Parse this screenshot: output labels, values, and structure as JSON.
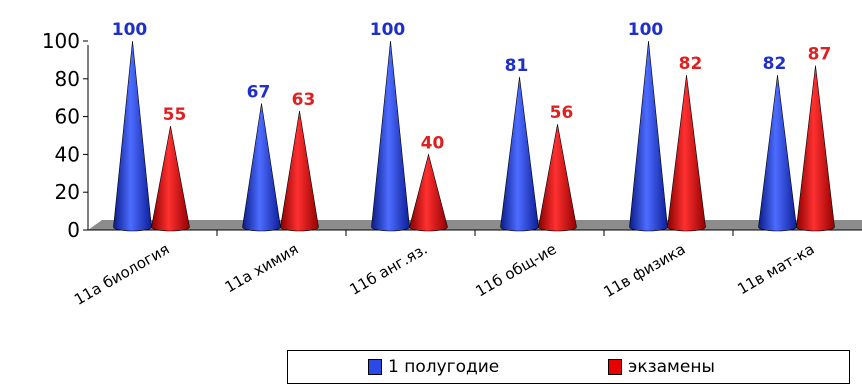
{
  "chart_data": {
    "type": "bar",
    "shape": "cone",
    "categories": [
      "11а биология",
      "11а химия",
      "11б анг.яз.",
      "11б общ-ие",
      "11в физика",
      "11в мат-ка"
    ],
    "series": [
      {
        "name": "1 полугодие",
        "values": [
          100,
          67,
          100,
          81,
          100,
          82
        ],
        "color": "#2a49e6",
        "label_color": "#1f2fc9"
      },
      {
        "name": "экзамены",
        "values": [
          55,
          63,
          40,
          56,
          82,
          87
        ],
        "color": "#e80000",
        "label_color": "#e02020"
      }
    ],
    "ylim": [
      0,
      100
    ],
    "yticks": [
      0,
      20,
      40,
      60,
      80,
      100
    ],
    "grid": false,
    "legend": "bottom"
  }
}
